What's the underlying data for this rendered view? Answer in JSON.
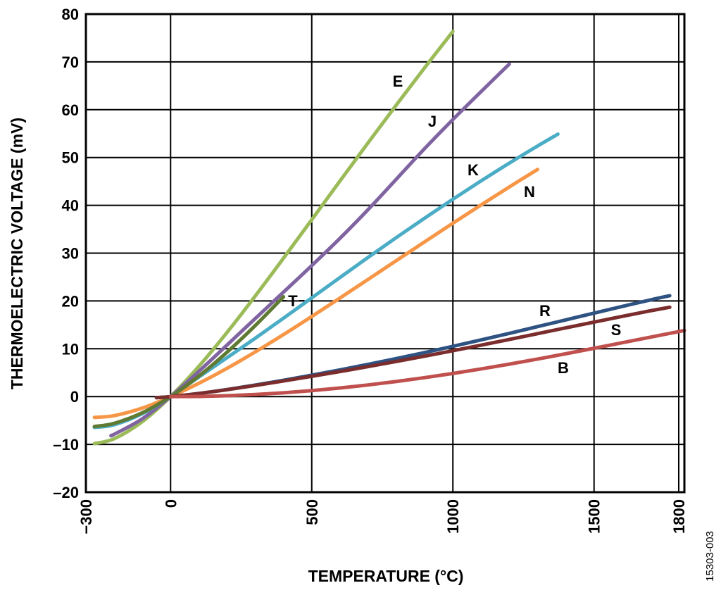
{
  "chart_data": {
    "type": "line",
    "title": "",
    "xlabel": "TEMPERATURE (°C)",
    "ylabel": "THERMOELECTRIC VOLTAGE (mV)",
    "xlim": [
      -300,
      1820
    ],
    "ylim": [
      -20,
      80
    ],
    "grid": true,
    "x_ticks": [
      -300,
      0,
      500,
      1000,
      1500,
      1800
    ],
    "x_tick_labels": [
      "−300",
      "0",
      "500",
      "1000",
      "1500",
      "1800"
    ],
    "y_ticks": [
      80,
      70,
      60,
      50,
      40,
      30,
      20,
      10,
      0,
      -10,
      -20
    ],
    "y_tick_labels": [
      "80",
      "70",
      "60",
      "50",
      "40",
      "30",
      "20",
      "10",
      "0",
      "–10",
      "–20"
    ],
    "figure_id": "15303-003",
    "series": [
      {
        "name": "E",
        "color": "#9BBB59",
        "x": [
          -270,
          -200,
          -100,
          0,
          100,
          200,
          300,
          400,
          500,
          600,
          700,
          800,
          900,
          1000
        ],
        "y": [
          -9.835,
          -8.825,
          -5.237,
          0,
          6.319,
          13.421,
          21.036,
          28.946,
          36.999,
          45.093,
          53.112,
          61.017,
          68.787,
          76.373
        ]
      },
      {
        "name": "J",
        "color": "#8064A2",
        "x": [
          -210,
          -200,
          -100,
          0,
          100,
          200,
          300,
          400,
          500,
          600,
          700,
          800,
          900,
          1000,
          1100,
          1200
        ],
        "y": [
          -8.095,
          -7.89,
          -4.633,
          0,
          5.269,
          10.779,
          16.327,
          21.848,
          27.393,
          33.102,
          39.132,
          45.494,
          51.877,
          57.953,
          63.792,
          69.553
        ]
      },
      {
        "name": "K",
        "color": "#4BACC6",
        "x": [
          -270,
          -200,
          -100,
          0,
          100,
          200,
          300,
          400,
          500,
          600,
          700,
          800,
          900,
          1000,
          1100,
          1200,
          1300,
          1372
        ],
        "y": [
          -6.458,
          -5.891,
          -3.554,
          0,
          4.096,
          8.138,
          12.209,
          16.397,
          20.644,
          24.905,
          29.129,
          33.275,
          37.326,
          41.276,
          45.119,
          48.838,
          52.41,
          54.886
        ]
      },
      {
        "name": "N",
        "color": "#F79646",
        "x": [
          -270,
          -200,
          -100,
          0,
          100,
          200,
          300,
          400,
          500,
          600,
          700,
          800,
          900,
          1000,
          1100,
          1200,
          1300
        ],
        "y": [
          -4.345,
          -3.99,
          -2.407,
          0,
          2.774,
          5.913,
          9.341,
          12.974,
          16.748,
          20.613,
          24.527,
          28.455,
          32.371,
          36.256,
          40.087,
          43.846,
          47.513
        ]
      },
      {
        "name": "T",
        "color": "#5F7A32",
        "x": [
          -270,
          -200,
          -100,
          0,
          100,
          200,
          300,
          400
        ],
        "y": [
          -6.258,
          -5.603,
          -3.379,
          0,
          4.279,
          9.288,
          14.862,
          20.872
        ]
      },
      {
        "name": "R",
        "color": "#2E5282",
        "x": [
          -50,
          0,
          100,
          200,
          300,
          400,
          500,
          600,
          700,
          800,
          900,
          1000,
          1100,
          1200,
          1300,
          1400,
          1500,
          1600,
          1700,
          1768
        ],
        "y": [
          -0.226,
          0,
          0.647,
          1.469,
          2.401,
          3.408,
          4.471,
          5.583,
          6.743,
          7.95,
          9.205,
          10.506,
          11.85,
          13.228,
          14.629,
          16.04,
          17.451,
          18.849,
          20.222,
          21.101
        ]
      },
      {
        "name": "S",
        "color": "#7B2C2C",
        "x": [
          -50,
          0,
          100,
          200,
          300,
          400,
          500,
          600,
          700,
          800,
          900,
          1000,
          1100,
          1200,
          1300,
          1400,
          1500,
          1600,
          1700,
          1768
        ],
        "y": [
          -0.236,
          0,
          0.646,
          1.441,
          2.323,
          3.259,
          4.233,
          5.239,
          6.275,
          7.345,
          8.449,
          9.587,
          10.757,
          11.951,
          13.159,
          14.373,
          15.582,
          16.777,
          17.947,
          18.693
        ]
      },
      {
        "name": "B",
        "color": "#C0504D",
        "x": [
          0,
          100,
          200,
          300,
          400,
          500,
          600,
          700,
          800,
          900,
          1000,
          1100,
          1200,
          1300,
          1400,
          1500,
          1600,
          1700,
          1800,
          1820
        ],
        "y": [
          0,
          0.033,
          0.178,
          0.431,
          0.787,
          1.242,
          1.792,
          2.431,
          3.154,
          3.957,
          4.834,
          5.78,
          6.786,
          7.848,
          8.956,
          10.099,
          11.263,
          12.433,
          13.591,
          13.82
        ]
      }
    ]
  }
}
